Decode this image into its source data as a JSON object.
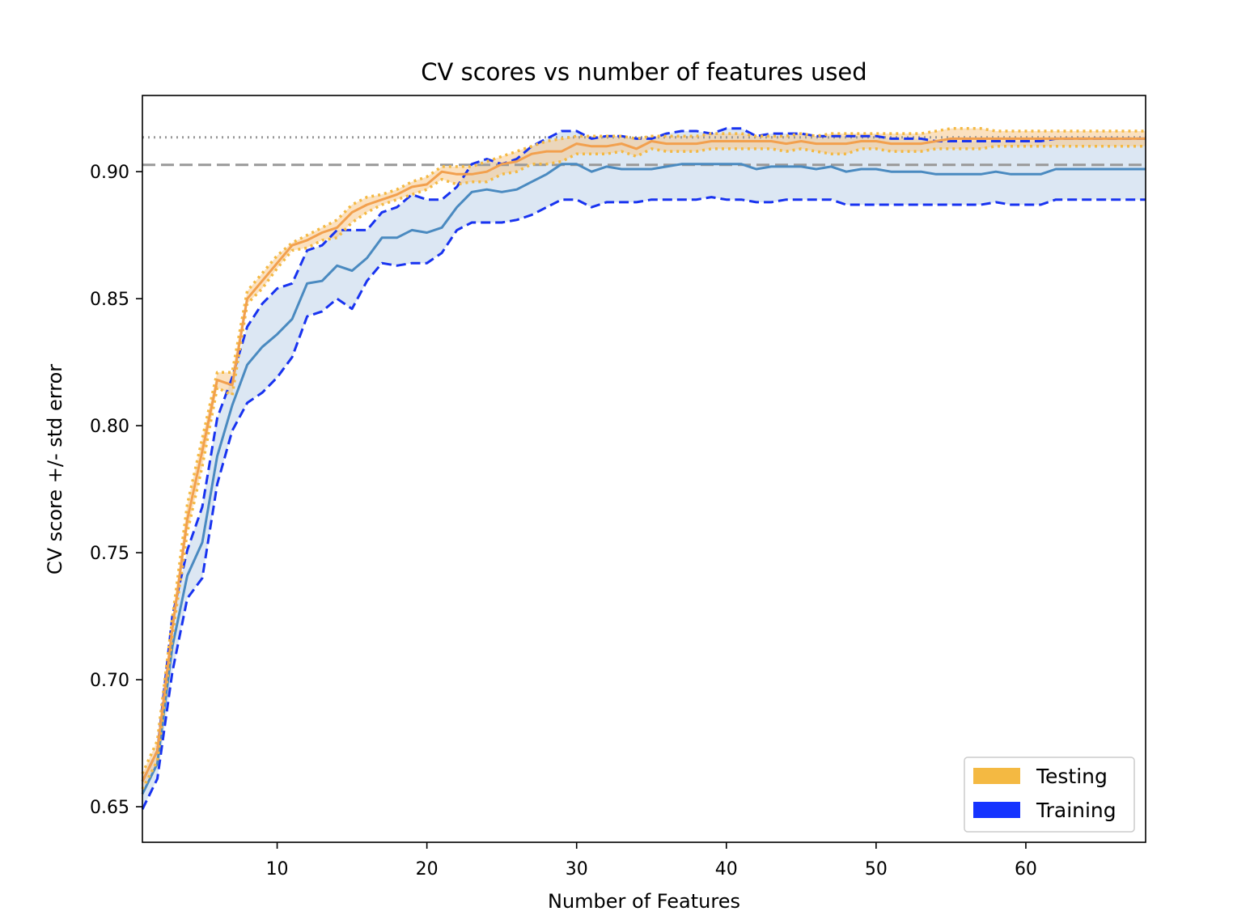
{
  "colors": {
    "testing_patch": "#f4b942",
    "training_patch": "#1533ff",
    "test_mean": "#f2a04e",
    "test_band": "#f7c98c",
    "test_err": "#f4b942",
    "train_mean": "#4a8ac0",
    "train_band": "#dce7f3",
    "train_err": "#1833f0",
    "ref": "#999999"
  },
  "chart_data": {
    "type": "line",
    "title": "CV scores vs number of features used",
    "xlabel": "Number of Features",
    "ylabel": "CV score +/- std error",
    "xlim": [
      1,
      68
    ],
    "ylim": [
      0.636,
      0.93
    ],
    "xticks": [
      10,
      20,
      30,
      40,
      50,
      60
    ],
    "xtick_labels": [
      "10",
      "20",
      "30",
      "40",
      "50",
      "60"
    ],
    "yticks": [
      0.65,
      0.7,
      0.75,
      0.8,
      0.85,
      0.9
    ],
    "ytick_labels": [
      "0.65",
      "0.70",
      "0.75",
      "0.80",
      "0.85",
      "0.90"
    ],
    "grid": false,
    "legend": {
      "position": "lower right",
      "entries": [
        {
          "label": "Testing",
          "color": "#f4b942"
        },
        {
          "label": "Training",
          "color": "#1533ff"
        }
      ]
    },
    "reference_lines": [
      {
        "style": "dotted",
        "y": 0.9135
      },
      {
        "style": "dashed",
        "y": 0.9027
      }
    ],
    "x": [
      1,
      2,
      3,
      4,
      5,
      6,
      7,
      8,
      9,
      10,
      11,
      12,
      13,
      14,
      15,
      16,
      17,
      18,
      19,
      20,
      21,
      22,
      23,
      24,
      25,
      26,
      27,
      28,
      29,
      30,
      31,
      32,
      33,
      34,
      35,
      36,
      37,
      38,
      39,
      40,
      41,
      42,
      43,
      44,
      45,
      46,
      47,
      48,
      49,
      50,
      51,
      52,
      53,
      54,
      55,
      56,
      57,
      58,
      59,
      60,
      61,
      62,
      63,
      64,
      65,
      66,
      67,
      68
    ],
    "series": [
      {
        "name": "Testing",
        "role": "mean",
        "values": [
          0.66,
          0.672,
          0.72,
          0.763,
          0.79,
          0.818,
          0.816,
          0.85,
          0.857,
          0.864,
          0.871,
          0.873,
          0.876,
          0.878,
          0.884,
          0.887,
          0.889,
          0.891,
          0.894,
          0.895,
          0.9,
          0.899,
          0.899,
          0.9,
          0.903,
          0.904,
          0.907,
          0.908,
          0.908,
          0.911,
          0.91,
          0.91,
          0.911,
          0.909,
          0.912,
          0.911,
          0.911,
          0.911,
          0.912,
          0.912,
          0.912,
          0.912,
          0.912,
          0.911,
          0.912,
          0.911,
          0.911,
          0.911,
          0.912,
          0.912,
          0.911,
          0.911,
          0.911,
          0.912,
          0.913,
          0.913,
          0.913,
          0.913,
          0.913,
          0.913,
          0.913,
          0.913,
          0.913,
          0.913,
          0.913,
          0.913,
          0.913,
          0.913
        ]
      },
      {
        "name": "Testing",
        "role": "upper",
        "values": [
          0.663,
          0.676,
          0.724,
          0.769,
          0.795,
          0.821,
          0.821,
          0.853,
          0.86,
          0.867,
          0.872,
          0.875,
          0.878,
          0.881,
          0.887,
          0.89,
          0.891,
          0.893,
          0.896,
          0.898,
          0.902,
          0.902,
          0.902,
          0.904,
          0.906,
          0.908,
          0.91,
          0.912,
          0.913,
          0.914,
          0.914,
          0.914,
          0.914,
          0.913,
          0.914,
          0.914,
          0.914,
          0.914,
          0.915,
          0.915,
          0.915,
          0.914,
          0.914,
          0.914,
          0.915,
          0.914,
          0.915,
          0.915,
          0.915,
          0.915,
          0.915,
          0.915,
          0.915,
          0.916,
          0.917,
          0.917,
          0.917,
          0.916,
          0.916,
          0.916,
          0.916,
          0.916,
          0.916,
          0.916,
          0.916,
          0.916,
          0.916,
          0.916
        ]
      },
      {
        "name": "Testing",
        "role": "lower",
        "values": [
          0.657,
          0.668,
          0.717,
          0.758,
          0.784,
          0.815,
          0.812,
          0.848,
          0.854,
          0.862,
          0.869,
          0.87,
          0.873,
          0.874,
          0.88,
          0.884,
          0.887,
          0.889,
          0.891,
          0.893,
          0.897,
          0.895,
          0.896,
          0.896,
          0.899,
          0.9,
          0.903,
          0.903,
          0.904,
          0.907,
          0.907,
          0.907,
          0.908,
          0.906,
          0.909,
          0.908,
          0.908,
          0.908,
          0.909,
          0.909,
          0.909,
          0.909,
          0.909,
          0.908,
          0.909,
          0.908,
          0.907,
          0.907,
          0.909,
          0.909,
          0.908,
          0.908,
          0.908,
          0.909,
          0.909,
          0.909,
          0.909,
          0.91,
          0.91,
          0.91,
          0.91,
          0.91,
          0.91,
          0.91,
          0.91,
          0.91,
          0.91,
          0.91
        ]
      },
      {
        "name": "Training",
        "role": "mean",
        "values": [
          0.655,
          0.667,
          0.713,
          0.741,
          0.754,
          0.788,
          0.808,
          0.824,
          0.831,
          0.836,
          0.842,
          0.856,
          0.857,
          0.863,
          0.861,
          0.866,
          0.874,
          0.874,
          0.877,
          0.876,
          0.878,
          0.886,
          0.892,
          0.893,
          0.892,
          0.893,
          0.896,
          0.899,
          0.903,
          0.903,
          0.9,
          0.902,
          0.901,
          0.901,
          0.901,
          0.902,
          0.903,
          0.903,
          0.903,
          0.903,
          0.903,
          0.901,
          0.902,
          0.902,
          0.902,
          0.901,
          0.902,
          0.9,
          0.901,
          0.901,
          0.9,
          0.9,
          0.9,
          0.899,
          0.899,
          0.899,
          0.899,
          0.9,
          0.899,
          0.899,
          0.899,
          0.901,
          0.901,
          0.901,
          0.901,
          0.901,
          0.901,
          0.901
        ]
      },
      {
        "name": "Training",
        "role": "upper",
        "values": [
          0.66,
          0.672,
          0.725,
          0.751,
          0.768,
          0.803,
          0.819,
          0.839,
          0.848,
          0.854,
          0.856,
          0.869,
          0.871,
          0.877,
          0.877,
          0.877,
          0.884,
          0.886,
          0.891,
          0.889,
          0.889,
          0.894,
          0.903,
          0.905,
          0.903,
          0.905,
          0.91,
          0.913,
          0.916,
          0.916,
          0.913,
          0.914,
          0.914,
          0.913,
          0.913,
          0.915,
          0.916,
          0.916,
          0.915,
          0.917,
          0.917,
          0.914,
          0.915,
          0.915,
          0.915,
          0.914,
          0.914,
          0.914,
          0.914,
          0.914,
          0.913,
          0.913,
          0.913,
          0.912,
          0.912,
          0.912,
          0.912,
          0.912,
          0.912,
          0.912,
          0.912,
          0.913,
          0.913,
          0.913,
          0.913,
          0.913,
          0.913,
          0.913
        ]
      },
      {
        "name": "Training",
        "role": "lower",
        "values": [
          0.649,
          0.661,
          0.703,
          0.732,
          0.74,
          0.777,
          0.798,
          0.809,
          0.813,
          0.819,
          0.827,
          0.843,
          0.845,
          0.85,
          0.846,
          0.857,
          0.864,
          0.863,
          0.864,
          0.864,
          0.868,
          0.877,
          0.88,
          0.88,
          0.88,
          0.881,
          0.883,
          0.886,
          0.889,
          0.889,
          0.886,
          0.888,
          0.888,
          0.888,
          0.889,
          0.889,
          0.889,
          0.889,
          0.89,
          0.889,
          0.889,
          0.888,
          0.888,
          0.889,
          0.889,
          0.889,
          0.889,
          0.887,
          0.887,
          0.887,
          0.887,
          0.887,
          0.887,
          0.887,
          0.887,
          0.887,
          0.887,
          0.888,
          0.887,
          0.887,
          0.887,
          0.889,
          0.889,
          0.889,
          0.889,
          0.889,
          0.889,
          0.889
        ]
      }
    ]
  }
}
